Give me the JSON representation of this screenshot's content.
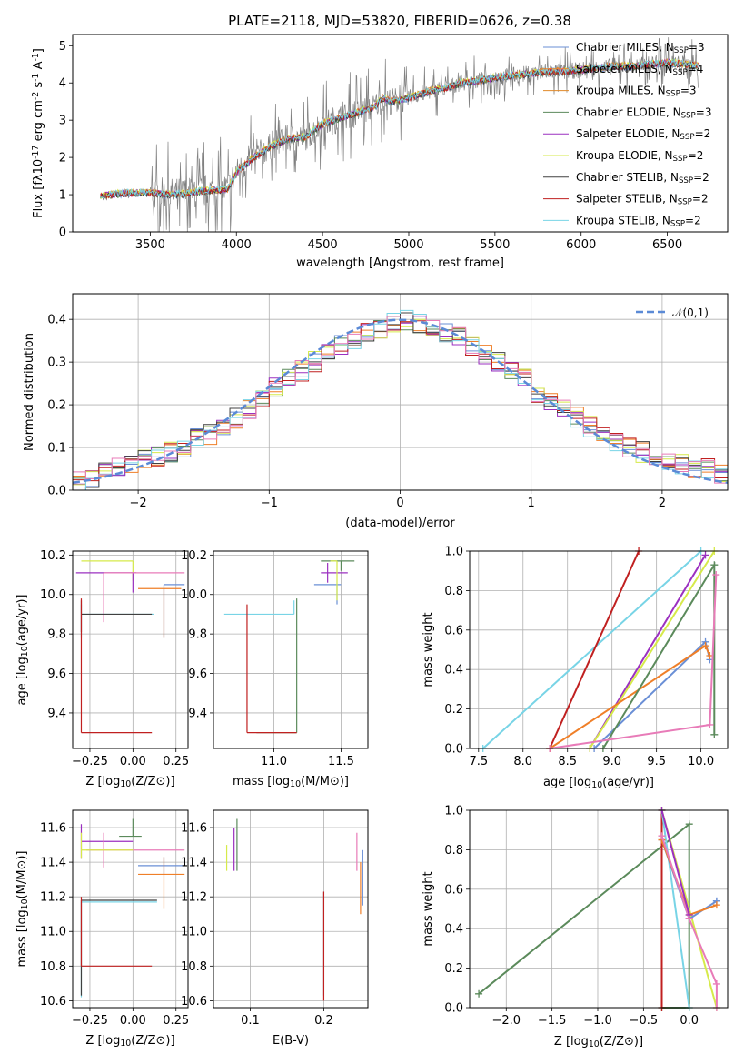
{
  "figure_title": "PLATE=2118, MJD=53820, FIBERID=0626, z=0.38",
  "chart_data": [
    {
      "type": "line",
      "panel": "spectrum",
      "xlabel": "wavelength [Angstrom, rest frame]",
      "ylabel": "Flux [f$_\\lambda$10$^{-17}$ erg cm$^{-2}$ s$^{-1}$ A$^{-1}$]",
      "xlim": [
        3050,
        6850
      ],
      "ylim": [
        0,
        5.3
      ],
      "xticks": [
        "3500",
        "4000",
        "4500",
        "5000",
        "5500",
        "6000",
        "6500"
      ],
      "yticks": [
        "0",
        "1",
        "2",
        "3",
        "4",
        "5"
      ],
      "grid": false,
      "legend_position": "top-right",
      "observed_series_color": "#808080",
      "series": [
        {
          "name": "Chabrier MILES, N$_{SSP}$=3",
          "color": "#6a8fd6"
        },
        {
          "name": "Salpeter MILES, N$_{SSP}$=4",
          "color": "#ef7f28"
        },
        {
          "name": "Kroupa MILES, N$_{SSP}$=3",
          "color": "#e08a2a"
        },
        {
          "name": "Chabrier ELODIE, N$_{SSP}$=3",
          "color": "#5b8a5b"
        },
        {
          "name": "Salpeter ELODIE, N$_{SSP}$=2",
          "color": "#9b30c0"
        },
        {
          "name": "Kroupa ELODIE, N$_{SSP}$=2",
          "color": "#d6ea4a"
        },
        {
          "name": "Chabrier STELIB, N$_{SSP}$=2",
          "color": "#404040"
        },
        {
          "name": "Salpeter STELIB, N$_{SSP}$=2",
          "color": "#c02020"
        },
        {
          "name": "Kroupa STELIB, N$_{SSP}$=2",
          "color": "#78d4e6"
        }
      ],
      "model_envelope": {
        "x": [
          3200,
          3300,
          3400,
          3500,
          3600,
          3700,
          3800,
          3900,
          3950,
          4000,
          4100,
          4200,
          4300,
          4400,
          4500,
          4600,
          4700,
          4800,
          4850,
          4900,
          5000,
          5100,
          5200,
          5300,
          5400,
          5500,
          5600,
          5700,
          5800,
          5900,
          6000,
          6100,
          6200,
          6300,
          6400,
          6500,
          6600,
          6680
        ],
        "y": [
          0.95,
          1.02,
          1.05,
          1.05,
          1.0,
          1.02,
          1.1,
          1.12,
          1.15,
          1.6,
          2.0,
          2.3,
          2.5,
          2.55,
          2.9,
          3.05,
          3.2,
          3.35,
          3.6,
          3.5,
          3.6,
          3.75,
          3.85,
          4.0,
          4.05,
          4.15,
          4.2,
          4.25,
          4.3,
          4.3,
          4.35,
          4.4,
          4.45,
          4.45,
          4.5,
          4.55,
          4.5,
          4.45
        ]
      }
    },
    {
      "type": "bar",
      "panel": "residual-histogram",
      "xlabel": "(data-model)/error",
      "ylabel": "Normed distribution",
      "xlim": [
        -2.5,
        2.5
      ],
      "ylim": [
        0,
        0.46
      ],
      "xticks": [
        "−2",
        "−1",
        "0",
        "1",
        "2"
      ],
      "yticks": [
        "0.0",
        "0.1",
        "0.2",
        "0.3",
        "0.4"
      ],
      "grid": true,
      "legend_position": "top-right",
      "legend": "$\\mathcal{N}(0,1)$",
      "gaussian_color": "#5b8ad6",
      "bins_start": -2.5,
      "bin_width": 0.1,
      "base_values": [
        0.02,
        0.03,
        0.04,
        0.05,
        0.06,
        0.07,
        0.08,
        0.09,
        0.1,
        0.12,
        0.13,
        0.15,
        0.17,
        0.19,
        0.21,
        0.24,
        0.26,
        0.28,
        0.3,
        0.33,
        0.34,
        0.35,
        0.37,
        0.38,
        0.39,
        0.4,
        0.39,
        0.38,
        0.37,
        0.36,
        0.34,
        0.32,
        0.3,
        0.28,
        0.26,
        0.23,
        0.21,
        0.19,
        0.17,
        0.15,
        0.13,
        0.11,
        0.1,
        0.09,
        0.08,
        0.07,
        0.06,
        0.05,
        0.05,
        0.04
      ],
      "series_colors": [
        "#6a8fd6",
        "#ef7f28",
        "#5b8a5b",
        "#9b30c0",
        "#d6ea4a",
        "#404040",
        "#c02020",
        "#78d4e6",
        "#e87bb8"
      ]
    },
    {
      "type": "scatter",
      "panel": "age-vs-Z",
      "xlabel": "Z [log$_{10}$(Z/Z$_\\odot$)]",
      "ylabel": "age  [log$_{10}$(age/yr)]",
      "xlim": [
        -0.35,
        0.32
      ],
      "ylim": [
        9.22,
        10.22
      ],
      "xticks": [
        "−0.25",
        "0.00",
        "0.25"
      ],
      "xtick_values": [
        -0.25,
        0,
        0.25
      ],
      "yticks": [
        "9.4",
        "9.6",
        "9.8",
        "10.0",
        "10.2"
      ],
      "ytick_values": [
        9.4,
        9.6,
        9.8,
        10.0,
        10.2
      ],
      "grid": true,
      "points": [
        {
          "x": 0.18,
          "y": 10.05,
          "xerr": [
            0.0,
            0.12
          ],
          "yerr": [
            0.27,
            0.0
          ],
          "color": "#6a8fd6"
        },
        {
          "x": 0.18,
          "y": 10.03,
          "xerr": [
            0.15,
            0.1
          ],
          "yerr": [
            0.25,
            0.0
          ],
          "color": "#ef7f28"
        },
        {
          "x": 0.0,
          "y": 10.17,
          "xerr": [
            0.3,
            0.0
          ],
          "yerr": [
            0.1,
            0.0
          ],
          "color": "#d6ea4a"
        },
        {
          "x": 0.0,
          "y": 10.11,
          "xerr": [
            0.33,
            0.02
          ],
          "yerr": [
            0.1,
            0.0
          ],
          "color": "#9b30c0"
        },
        {
          "x": -0.17,
          "y": 10.11,
          "xerr": [
            0.0,
            0.47
          ],
          "yerr": [
            0.25,
            0.0
          ],
          "color": "#e87bb8"
        },
        {
          "x": -0.3,
          "y": 9.9,
          "xerr": [
            0.0,
            0.42
          ],
          "yerr": [
            0.12,
            0.05
          ],
          "color": "#78d4e6"
        },
        {
          "x": -0.3,
          "y": 9.9,
          "xerr": [
            0.0,
            0.41
          ],
          "yerr": [
            0.09,
            0.07
          ],
          "color": "#404040"
        },
        {
          "x": -0.3,
          "y": 9.3,
          "xerr": [
            0.0,
            0.41
          ],
          "yerr": [
            0.0,
            0.68
          ],
          "color": "#c02020"
        }
      ]
    },
    {
      "type": "scatter",
      "panel": "age-vs-mass",
      "xlabel": "mass [log$_{10}$(M/M$_\\odot$)]",
      "xlim": [
        10.55,
        11.7
      ],
      "ylim": [
        9.22,
        10.22
      ],
      "xticks": [
        "11.0",
        "11.5"
      ],
      "xtick_values": [
        11.0,
        11.5
      ],
      "yticks": [
        "9.4",
        "9.6",
        "9.8",
        "10.0",
        "10.2"
      ],
      "ytick_values": [
        9.4,
        9.6,
        9.8,
        10.0,
        10.2
      ],
      "grid": true,
      "points": [
        {
          "x": 11.47,
          "y": 10.05,
          "xerr": [
            0.17,
            0.03
          ],
          "yerr": [
            0.1,
            0.0
          ],
          "color": "#6a8fd6"
        },
        {
          "x": 11.4,
          "y": 10.11,
          "xerr": [
            0.05,
            0.15
          ],
          "yerr": [
            0.05,
            0.05
          ],
          "color": "#9b30c0"
        },
        {
          "x": 11.5,
          "y": 10.17,
          "xerr": [
            0.15,
            0.1
          ],
          "yerr": [
            0.05,
            0.0
          ],
          "color": "#5b8a5b"
        },
        {
          "x": 11.15,
          "y": 9.9,
          "xerr": [
            0.52,
            0.0
          ],
          "yerr": [
            0.0,
            0.07
          ],
          "color": "#78d4e6"
        },
        {
          "x": 11.17,
          "y": 9.3,
          "xerr": [
            0.3,
            0.0
          ],
          "yerr": [
            0.0,
            0.68
          ],
          "color": "#5b8a5b"
        },
        {
          "x": 10.8,
          "y": 9.3,
          "xerr": [
            0.0,
            0.37
          ],
          "yerr": [
            0.0,
            0.65
          ],
          "color": "#c02020"
        },
        {
          "x": 11.47,
          "y": 10.17,
          "xerr": [
            0.05,
            0.0
          ],
          "yerr": [
            0.2,
            0.0
          ],
          "color": "#d6ea4a"
        }
      ]
    },
    {
      "type": "line",
      "panel": "mass-weight-vs-age",
      "xlabel": "age  [log$_{10}$(age/yr)]",
      "ylabel": "mass weight",
      "xlim": [
        7.4,
        10.3
      ],
      "ylim": [
        0,
        1
      ],
      "xticks": [
        "7.5",
        "8.0",
        "8.5",
        "9.0",
        "9.5",
        "10.0"
      ],
      "xtick_values": [
        7.5,
        8.0,
        8.5,
        9.0,
        9.5,
        10.0
      ],
      "yticks": [
        "0.0",
        "0.2",
        "0.4",
        "0.6",
        "0.8",
        "1.0"
      ],
      "ytick_values": [
        0,
        0.2,
        0.4,
        0.6,
        0.8,
        1.0
      ],
      "grid": true,
      "series": [
        {
          "color": "#78d4e6",
          "x": [
            7.55,
            10.0
          ],
          "y": [
            0.0,
            1.0
          ]
        },
        {
          "color": "#c02020",
          "x": [
            8.3,
            9.3
          ],
          "y": [
            0.0,
            1.0
          ]
        },
        {
          "color": "#9b30c0",
          "x": [
            8.75,
            10.05
          ],
          "y": [
            0.0,
            0.98
          ]
        },
        {
          "color": "#d6ea4a",
          "x": [
            8.75,
            10.15
          ],
          "y": [
            0.0,
            1.0
          ]
        },
        {
          "color": "#6a8fd6",
          "x": [
            8.8,
            10.05,
            10.1
          ],
          "y": [
            0.0,
            0.54,
            0.45
          ]
        },
        {
          "color": "#ef7f28",
          "x": [
            8.3,
            10.05,
            10.1
          ],
          "y": [
            0.0,
            0.52,
            0.47
          ]
        },
        {
          "color": "#5b8a5b",
          "x": [
            8.9,
            10.15,
            10.15
          ],
          "y": [
            0.0,
            0.93,
            0.07
          ]
        },
        {
          "color": "#e87bb8",
          "x": [
            8.3,
            10.1,
            10.17
          ],
          "y": [
            0.0,
            0.12,
            0.88
          ]
        }
      ]
    },
    {
      "type": "scatter",
      "panel": "mass-vs-Z",
      "xlabel": "Z [log$_{10}$(Z/Z$_\\odot$)]",
      "ylabel": "mass [log$_{10}$(M/M$_\\odot$)]",
      "xlim": [
        -0.35,
        0.32
      ],
      "ylim": [
        10.56,
        11.7
      ],
      "xticks": [
        "−0.25",
        "0.00",
        "0.25"
      ],
      "xtick_values": [
        -0.25,
        0,
        0.25
      ],
      "yticks": [
        "10.6",
        "10.8",
        "11.0",
        "11.2",
        "11.4",
        "11.6"
      ],
      "ytick_values": [
        10.6,
        10.8,
        11.0,
        11.2,
        11.4,
        11.6
      ],
      "grid": true,
      "points": [
        {
          "x": 0.0,
          "y": 11.55,
          "xerr": [
            0.08,
            0.05
          ],
          "yerr": [
            0.0,
            0.1
          ],
          "color": "#5b8a5b"
        },
        {
          "x": -0.3,
          "y": 11.52,
          "xerr": [
            0.0,
            0.3
          ],
          "yerr": [
            0.1,
            0.1
          ],
          "color": "#9b30c0"
        },
        {
          "x": 0.18,
          "y": 11.38,
          "xerr": [
            0.15,
            0.12
          ],
          "yerr": [
            0.05,
            0.05
          ],
          "color": "#6a8fd6"
        },
        {
          "x": -0.17,
          "y": 11.47,
          "xerr": [
            0.1,
            0.47
          ],
          "yerr": [
            0.1,
            0.1
          ],
          "color": "#e87bb8"
        },
        {
          "x": 0.18,
          "y": 11.33,
          "xerr": [
            0.15,
            0.12
          ],
          "yerr": [
            0.2,
            0.1
          ],
          "color": "#ef7f28"
        },
        {
          "x": -0.3,
          "y": 11.47,
          "xerr": [
            0.0,
            0.3
          ],
          "yerr": [
            0.05,
            0.1
          ],
          "color": "#d6ea4a"
        },
        {
          "x": -0.3,
          "y": 11.17,
          "xerr": [
            0.0,
            0.44
          ],
          "yerr": [
            0.55,
            0.0
          ],
          "color": "#78d4e6"
        },
        {
          "x": -0.3,
          "y": 11.18,
          "xerr": [
            0.0,
            0.44
          ],
          "yerr": [
            0.55,
            0.0
          ],
          "color": "#404040"
        },
        {
          "x": -0.3,
          "y": 10.8,
          "xerr": [
            0.0,
            0.41
          ],
          "yerr": [
            0.0,
            0.4
          ],
          "color": "#c02020"
        }
      ]
    },
    {
      "type": "scatter",
      "panel": "mass-vs-EBV",
      "xlabel": "E(B-V)",
      "xlim": [
        0.05,
        0.26
      ],
      "ylim": [
        10.56,
        11.7
      ],
      "xticks": [
        "0.1",
        "0.2"
      ],
      "xtick_values": [
        0.1,
        0.2
      ],
      "yticks": [
        "10.6",
        "10.8",
        "11.0",
        "11.2",
        "11.4",
        "11.6"
      ],
      "ytick_values": [
        10.6,
        10.8,
        11.0,
        11.2,
        11.4,
        11.6
      ],
      "grid": true,
      "points": [
        {
          "x": 0.068,
          "y": 11.45,
          "yerr": [
            0.1,
            0.05
          ],
          "color": "#d6ea4a"
        },
        {
          "x": 0.078,
          "y": 11.5,
          "yerr": [
            0.15,
            0.1
          ],
          "color": "#9b30c0"
        },
        {
          "x": 0.082,
          "y": 11.55,
          "yerr": [
            0.2,
            0.1
          ],
          "color": "#5b8a5b"
        },
        {
          "x": 0.2,
          "y": 11.18,
          "yerr": [
            0.55,
            0.05
          ],
          "color": "#78d4e6"
        },
        {
          "x": 0.2,
          "y": 11.15,
          "yerr": [
            0.55,
            0.08
          ],
          "color": "#c02020"
        },
        {
          "x": 0.245,
          "y": 11.45,
          "yerr": [
            0.1,
            0.12
          ],
          "color": "#e87bb8"
        },
        {
          "x": 0.25,
          "y": 11.3,
          "yerr": [
            0.2,
            0.1
          ],
          "color": "#ef7f28"
        },
        {
          "x": 0.253,
          "y": 11.35,
          "yerr": [
            0.2,
            0.12
          ],
          "color": "#6a8fd6"
        }
      ]
    },
    {
      "type": "line",
      "panel": "mass-weight-vs-Z",
      "xlabel": "Z [log$_{10}$(Z/Z$_\\odot$)]",
      "ylabel": "mass weight",
      "xlim": [
        -2.4,
        0.42
      ],
      "ylim": [
        0,
        1
      ],
      "xticks": [
        "−2.0",
        "−1.5",
        "−1.0",
        "−0.5",
        "0.0"
      ],
      "xtick_values": [
        -2.0,
        -1.5,
        -1.0,
        -0.5,
        0.0
      ],
      "yticks": [
        "0.0",
        "0.2",
        "0.4",
        "0.6",
        "0.8",
        "1.0"
      ],
      "ytick_values": [
        0,
        0.2,
        0.4,
        0.6,
        0.8,
        1.0
      ],
      "grid": true,
      "series": [
        {
          "color": "#5b8a5b",
          "x": [
            -2.3,
            0.0,
            0.0,
            -0.3
          ],
          "y": [
            0.07,
            0.93,
            0.0,
            0.0
          ]
        },
        {
          "color": "#c02020",
          "x": [
            -0.3,
            -0.3
          ],
          "y": [
            0.0,
            1.0
          ]
        },
        {
          "color": "#78d4e6",
          "x": [
            -0.3,
            0.0
          ],
          "y": [
            1.0,
            0.0
          ]
        },
        {
          "color": "#d6ea4a",
          "x": [
            -0.3,
            0.3
          ],
          "y": [
            1.0,
            0.0
          ]
        },
        {
          "color": "#6a8fd6",
          "x": [
            -0.3,
            0.0,
            0.3,
            0.3
          ],
          "y": [
            0.85,
            0.45,
            0.54,
            0.54
          ]
        },
        {
          "color": "#ef7f28",
          "x": [
            -0.3,
            0.0,
            0.3
          ],
          "y": [
            0.85,
            0.47,
            0.52
          ]
        },
        {
          "color": "#e87bb8",
          "x": [
            -0.3,
            0.0,
            0.3,
            0.3
          ],
          "y": [
            0.87,
            0.45,
            0.12,
            0.0
          ]
        },
        {
          "color": "#9b30c0",
          "x": [
            -0.3,
            0.0
          ],
          "y": [
            1.0,
            0.47
          ]
        }
      ]
    }
  ]
}
